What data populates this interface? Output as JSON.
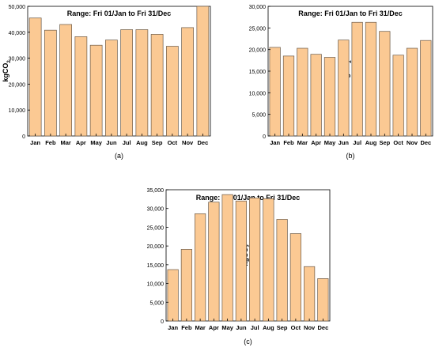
{
  "figure": {
    "background": "#ffffff",
    "bar_fill": "#fbc993",
    "bar_stroke": "#6b5a48",
    "axis_color": "#000000"
  },
  "chart_data": [
    {
      "type": "bar",
      "panel_label": "(a)",
      "title": "Range: Fri 01/Jan to Fri 31/Dec",
      "ylabel_base": "kgCO",
      "ylabel_sub": "2",
      "xlabel": "",
      "grid": false,
      "legend": "none",
      "ylim": [
        0,
        50000
      ],
      "yticks": [
        0,
        10000,
        20000,
        30000,
        40000,
        50000
      ],
      "ytick_labels": [
        "0",
        "10,000",
        "20,000",
        "30,000",
        "40,000",
        "50,000"
      ],
      "categories": [
        "Jan",
        "Feb",
        "Mar",
        "Apr",
        "May",
        "Jun",
        "Jul",
        "Aug",
        "Sep",
        "Oct",
        "Nov",
        "Dec"
      ],
      "values": [
        45500,
        40800,
        43000,
        38300,
        35000,
        37000,
        41000,
        41000,
        39200,
        34600,
        41800,
        50000
      ]
    },
    {
      "type": "bar",
      "panel_label": "(b)",
      "title": "Range: Fri 01/Jan to Fri 31/Dec",
      "ylabel_base": "kgCO",
      "ylabel_sub": "2",
      "xlabel": "",
      "grid": false,
      "legend": "none",
      "ylim": [
        0,
        30000
      ],
      "yticks": [
        0,
        5000,
        10000,
        15000,
        20000,
        25000,
        30000
      ],
      "ytick_labels": [
        "0",
        "5,000",
        "10,000",
        "15,000",
        "20,000",
        "25,000",
        "30,000"
      ],
      "categories": [
        "Jan",
        "Feb",
        "Mar",
        "Apr",
        "May",
        "Jun",
        "Jul",
        "Aug",
        "Sep",
        "Oct",
        "Nov",
        "Dec"
      ],
      "values": [
        20500,
        18500,
        20300,
        18900,
        18200,
        22200,
        26300,
        26300,
        24200,
        18700,
        20300,
        22100
      ]
    },
    {
      "type": "bar",
      "panel_label": "(c)",
      "title": "Range: Fri 01/Jan to Fri 31/Dec",
      "ylabel_base": "kgCO",
      "ylabel_sub": "2",
      "xlabel": "",
      "grid": false,
      "legend": "none",
      "ylim": [
        0,
        35000
      ],
      "yticks": [
        0,
        5000,
        10000,
        15000,
        20000,
        25000,
        30000,
        35000
      ],
      "ytick_labels": [
        "0",
        "5,000",
        "10,000",
        "15,000",
        "20,000",
        "25,000",
        "30,000",
        "35,000"
      ],
      "categories": [
        "Jan",
        "Feb",
        "Mar",
        "Apr",
        "May",
        "Jun",
        "Jul",
        "Aug",
        "Sep",
        "Oct",
        "Nov",
        "Dec"
      ],
      "values": [
        13700,
        19100,
        28600,
        31700,
        33700,
        32000,
        32800,
        32600,
        27100,
        23300,
        14500,
        11300
      ]
    }
  ]
}
